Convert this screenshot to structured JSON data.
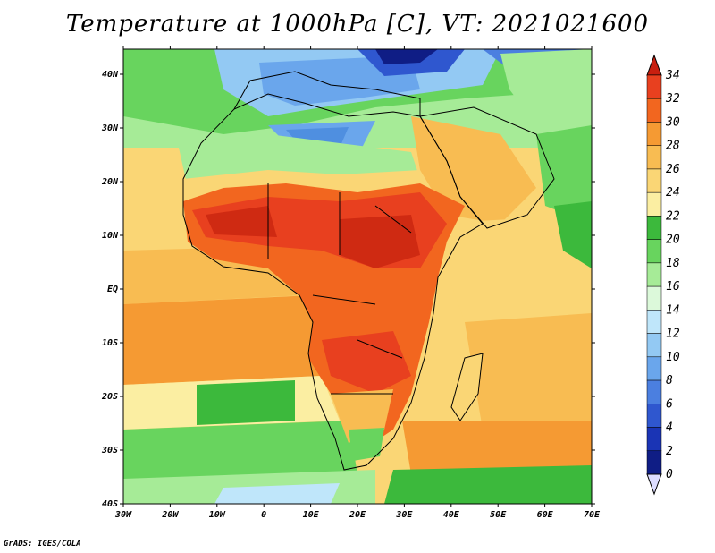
{
  "title": "Temperature at 1000hPa [C], VT: 2021021600",
  "credit": "GrADS: IGES/COLA",
  "map": {
    "lon_ticks": [
      "30W",
      "20W",
      "10W",
      "0",
      "10E",
      "20E",
      "30E",
      "40E",
      "50E",
      "60E",
      "70E"
    ],
    "lat_ticks": [
      "40S",
      "30S",
      "20S",
      "10S",
      "EQ",
      "10N",
      "20N",
      "30N",
      "40N"
    ],
    "colors": {
      "ocean_warm": "#f7a84a",
      "land_hot": "#e8401f",
      "land_hottest": "#cf2a12",
      "cold_med": "#4f8fe0",
      "green": "#3fc24a"
    }
  },
  "colorbar": {
    "levels": [
      "34",
      "32",
      "30",
      "28",
      "26",
      "24",
      "22",
      "20",
      "18",
      "16",
      "14",
      "12",
      "10",
      "8",
      "6",
      "4",
      "2",
      "0"
    ],
    "colors": [
      "#c81f0f",
      "#e8401f",
      "#f2661f",
      "#f59a33",
      "#f8bc52",
      "#fad675",
      "#fbeea2",
      "#3cb93c",
      "#68d45e",
      "#a6eb97",
      "#dcf9da",
      "#bfe6fa",
      "#93c9f3",
      "#6aa6ec",
      "#4b7fe0",
      "#2f57cf",
      "#1a34b5",
      "#0f1d85",
      "#dcdcff"
    ]
  }
}
